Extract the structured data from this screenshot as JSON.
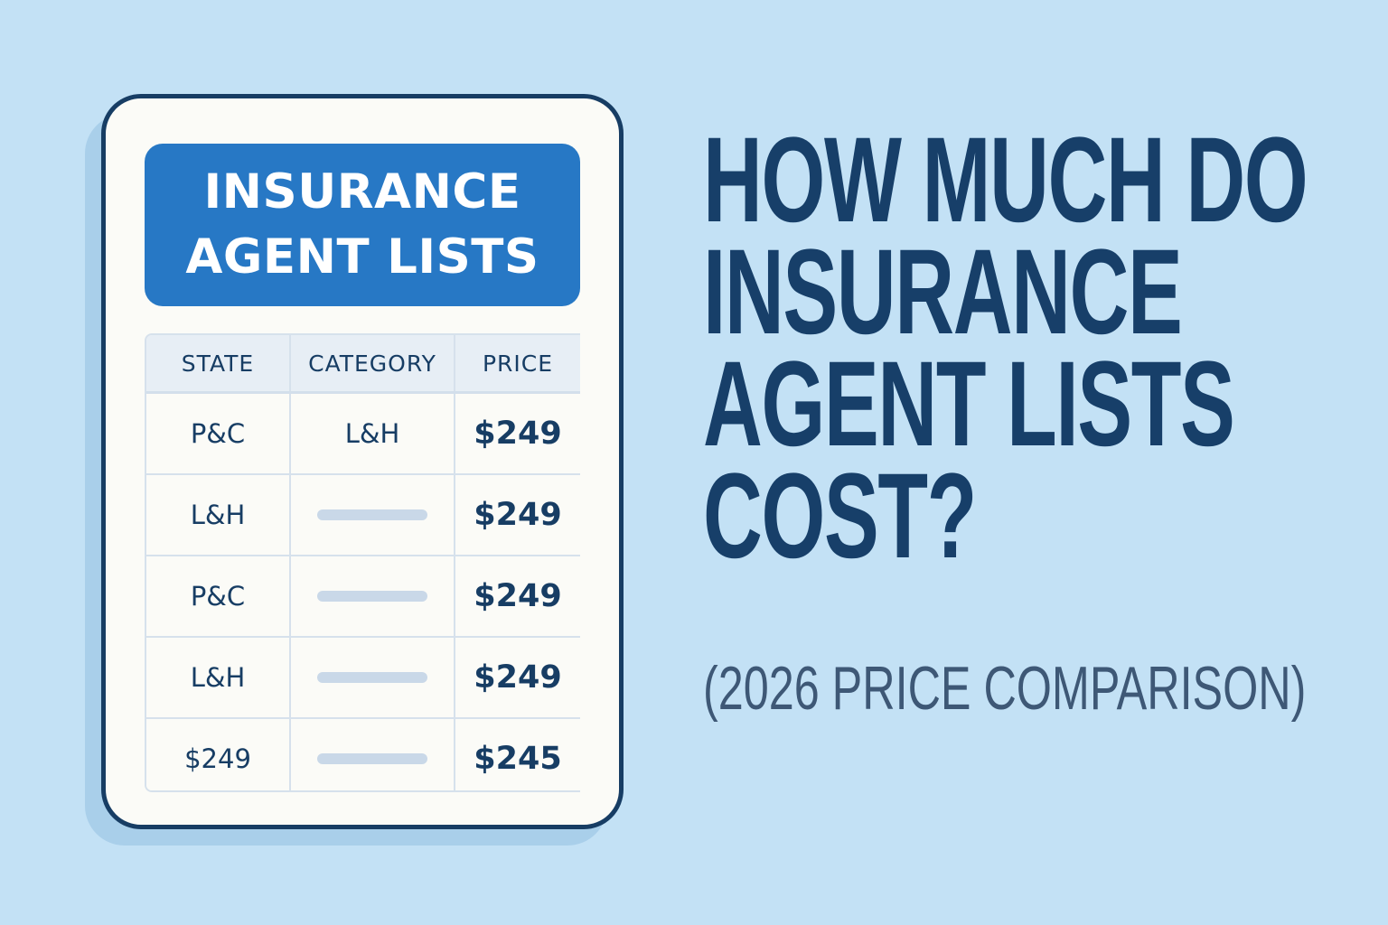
{
  "card": {
    "title_line1": "INSURANCE",
    "title_line2": "AGENT LISTS",
    "columns": [
      "STATE",
      "CATEGORY",
      "PRICE"
    ],
    "rows": [
      {
        "state": "P&C",
        "category": "L&H",
        "price": "$249"
      },
      {
        "state": "L&H",
        "category": "",
        "price": "$249"
      },
      {
        "state": "P&C",
        "category": "",
        "price": "$249"
      },
      {
        "state": "L&H",
        "category": "",
        "price": "$249"
      },
      {
        "state": "$249",
        "category": "",
        "price": "$245"
      }
    ]
  },
  "headline": {
    "lines": [
      "HOW MUCH DO",
      "INSURANCE",
      "AGENT LISTS",
      "COST?"
    ],
    "subtitle": "(2026 PRICE COMPARISON)"
  },
  "colors": {
    "background": "#c3e1f5",
    "banner": "#2778c5",
    "navy": "#173f69",
    "card_border": "#173d64",
    "subtitle": "#3e5876"
  }
}
